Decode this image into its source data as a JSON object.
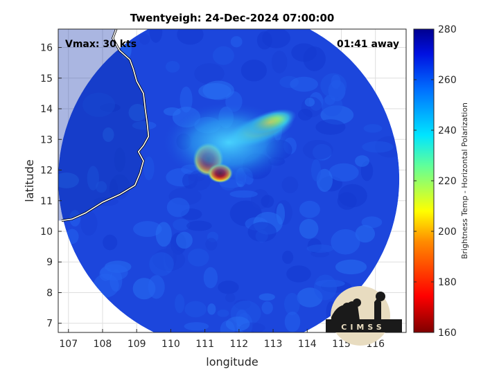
{
  "chart_data": {
    "type": "heatmap",
    "title": "Twentyeigh: 24-Dec-2024 07:00:00",
    "xlabel": "longitude",
    "ylabel": "latitude",
    "xlim": [
      106.7,
      116.9
    ],
    "ylim": [
      6.7,
      16.6
    ],
    "x_ticks": [
      107,
      108,
      109,
      110,
      111,
      112,
      113,
      114,
      115,
      116
    ],
    "y_ticks": [
      7,
      8,
      9,
      10,
      11,
      12,
      13,
      14,
      15,
      16
    ],
    "grid": true,
    "annotations": {
      "top_left": "Vmax: 30 kts",
      "top_right": "01:41 away"
    },
    "colorbar": {
      "label": "Brightness Temp - Horizontal Polarization",
      "range": [
        160,
        280
      ],
      "ticks": [
        160,
        180,
        200,
        220,
        240,
        260,
        280
      ],
      "colormap": "jet"
    },
    "swath": {
      "center": [
        111.7,
        11.7
      ],
      "radius_deg": 5.0
    },
    "background_value": 262,
    "features": [
      {
        "name": "cold-core",
        "lon": 111.1,
        "lat": 12.35,
        "min_value": 165
      },
      {
        "name": "cold-core-south",
        "lon": 111.45,
        "lat": 11.9,
        "min_value": 162
      },
      {
        "name": "rainband-northeast",
        "lon": 112.6,
        "lat": 13.3,
        "min_value": 215
      },
      {
        "name": "rainband-east",
        "lon": 112.9,
        "lat": 13.55,
        "min_value": 212
      },
      {
        "name": "cloud-shield",
        "lon": 111.7,
        "lat": 12.9,
        "min_value": 245
      }
    ],
    "logo_text": "CIMSS"
  }
}
